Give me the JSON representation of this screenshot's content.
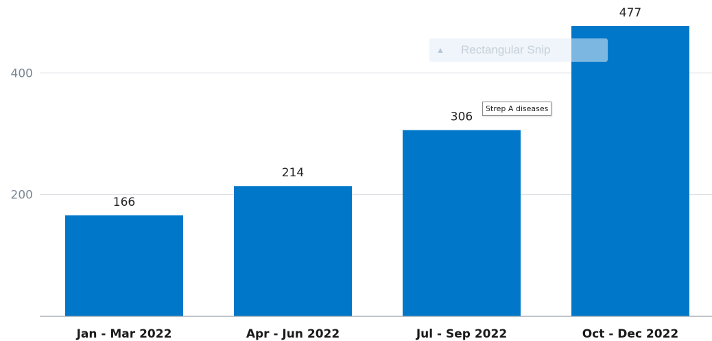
{
  "chart_data": {
    "type": "bar",
    "categories": [
      "Jan - Mar 2022",
      "Apr - Jun 2022",
      "Jul - Sep 2022",
      "Oct - Dec 2022"
    ],
    "values": [
      166,
      214,
      306,
      477
    ],
    "data_labels": [
      "166",
      "214",
      "306",
      "477"
    ],
    "y_ticks": [
      {
        "value": 200,
        "label": "200"
      },
      {
        "value": 400,
        "label": "400"
      }
    ],
    "ylim": [
      0,
      477
    ],
    "grid": true,
    "bar_color": "#0077c8"
  },
  "overlay": {
    "snip_label": "Rectangular Snip",
    "snip_icon": "snip-tool-icon"
  },
  "tooltip": {
    "text": "Strep A diseases"
  }
}
